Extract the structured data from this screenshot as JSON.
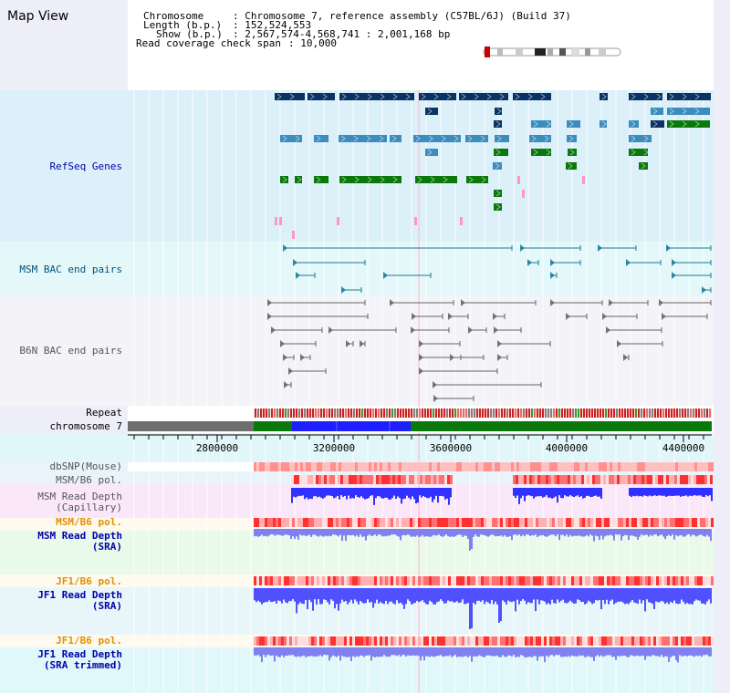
{
  "title": "Map View",
  "info": {
    "chromosome_key": "Chromosome",
    "chromosome_val": ": Chromosome 7, reference assembly (C57BL/6J) (Build 37)",
    "length_key": "Length (b.p.)",
    "length_val": ": 152,524,553",
    "show_key": "Show (b.p.)",
    "show_val": ": 2,567,574-4,568,741 : 2,001,168 bp",
    "coverage_key": "Read coverage check span",
    "coverage_val": ": 10,000"
  },
  "tracks": {
    "refseq": "RefSeq Genes",
    "msm_bac": "MSM BAC end pairs",
    "b6n_bac": "B6N BAC end pairs",
    "repeat": "Repeat",
    "chromosome": "chromosome 7",
    "dbsnp": "dbSNP(Mouse)",
    "msm_b6_pol_1": "MSM/B6 pol.",
    "msm_read_depth_cap_1": "MSM Read Depth",
    "msm_read_depth_cap_2": "(Capillary)",
    "msm_b6_pol_2": "MSM/B6 pol.",
    "msm_read_depth_sra_1": "MSM Read Depth",
    "msm_read_depth_sra_2": "(SRA)",
    "jf1_b6_pol_1": "JF1/B6 pol.",
    "jf1_read_depth_sra_1": "JF1 Read Depth",
    "jf1_read_depth_sra_2": "(SRA)",
    "jf1_b6_pol_2": "JF1/B6 pol.",
    "jf1_read_depth_trim_1": "JF1 Read Depth",
    "jf1_read_depth_trim_2": "(SRA trimmed)"
  },
  "axis": {
    "ticks": [
      "2800000",
      "3200000",
      "3600000",
      "4000000",
      "4400000"
    ]
  },
  "colors": {
    "navy": "#0a3264",
    "steel": "#3c8cbe",
    "green": "#0a780a",
    "pink": "#ff96c8",
    "teal": "#1a7896",
    "gray": "#646464",
    "label_blue": "#0000aa",
    "label_teal": "#00507a",
    "label_gray": "#555555",
    "label_orange": "#e09000",
    "chrom_blue": "#1e1eff"
  }
}
